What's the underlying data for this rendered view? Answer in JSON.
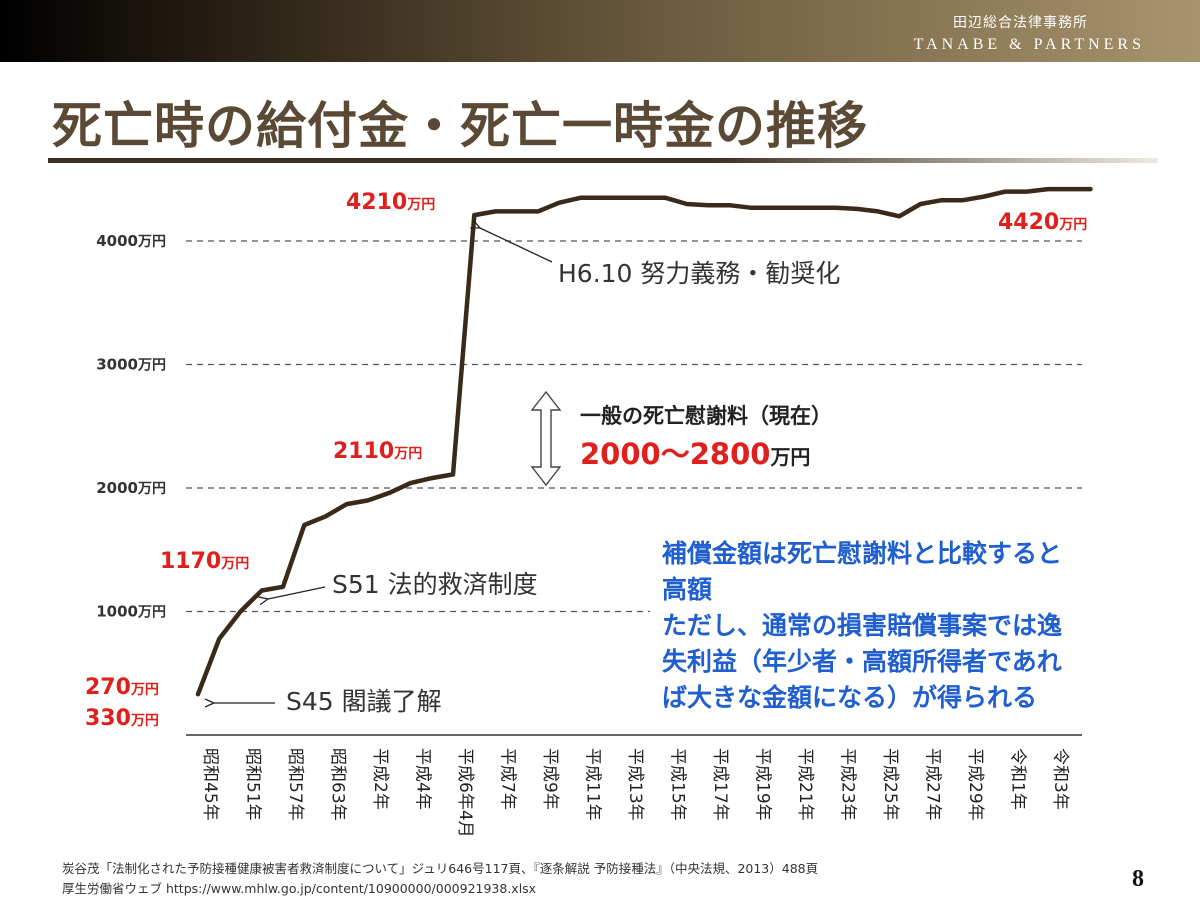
{
  "header": {
    "firm_jp": "田辺総合法律事務所",
    "firm_en": "TANABE & PARTNERS"
  },
  "title": "死亡時の給付金・死亡一時金の推移",
  "colors": {
    "line": "#3a2a1a",
    "red": "#e0201c",
    "blue": "#1f5fd0",
    "title": "#5a4a35"
  },
  "chart_data": {
    "type": "line",
    "unit": "万円",
    "categories": [
      "昭和45年",
      "昭和51年",
      "昭和57年",
      "昭和63年",
      "平成2年",
      "平成4年",
      "平成6年4月",
      "平成7年",
      "平成9年",
      "平成11年",
      "平成13年",
      "平成15年",
      "平成17年",
      "平成19年",
      "平成21年",
      "平成23年",
      "平成25年",
      "平成27年",
      "平成29年",
      "令和1年",
      "令和3年"
    ],
    "points": [
      {
        "x": 0.0,
        "y": 330
      },
      {
        "x": 0.5,
        "y": 780
      },
      {
        "x": 1.0,
        "y": 1000
      },
      {
        "x": 1.5,
        "y": 1170
      },
      {
        "x": 2.0,
        "y": 1200
      },
      {
        "x": 2.5,
        "y": 1700
      },
      {
        "x": 3.0,
        "y": 1770
      },
      {
        "x": 3.5,
        "y": 1870
      },
      {
        "x": 4.0,
        "y": 1900
      },
      {
        "x": 4.5,
        "y": 1960
      },
      {
        "x": 5.0,
        "y": 2040
      },
      {
        "x": 5.5,
        "y": 2080
      },
      {
        "x": 6.0,
        "y": 2110
      },
      {
        "x": 6.5,
        "y": 4210
      },
      {
        "x": 7.0,
        "y": 4240
      },
      {
        "x": 8.0,
        "y": 4240
      },
      {
        "x": 8.5,
        "y": 4310
      },
      {
        "x": 9.0,
        "y": 4350
      },
      {
        "x": 10.0,
        "y": 4350
      },
      {
        "x": 11.0,
        "y": 4350
      },
      {
        "x": 11.5,
        "y": 4300
      },
      {
        "x": 12.0,
        "y": 4290
      },
      {
        "x": 12.5,
        "y": 4290
      },
      {
        "x": 13.0,
        "y": 4270
      },
      {
        "x": 14.0,
        "y": 4270
      },
      {
        "x": 15.0,
        "y": 4270
      },
      {
        "x": 15.5,
        "y": 4260
      },
      {
        "x": 16.0,
        "y": 4240
      },
      {
        "x": 16.5,
        "y": 4200
      },
      {
        "x": 17.0,
        "y": 4300
      },
      {
        "x": 17.5,
        "y": 4330
      },
      {
        "x": 18.0,
        "y": 4330
      },
      {
        "x": 18.5,
        "y": 4360
      },
      {
        "x": 19.0,
        "y": 4400
      },
      {
        "x": 19.5,
        "y": 4400
      },
      {
        "x": 20.0,
        "y": 4420
      },
      {
        "x": 21.0,
        "y": 4420
      }
    ],
    "ylim": [
      0,
      4700
    ],
    "grid_values": [
      1000,
      2000,
      3000,
      4000
    ],
    "y_tick_labels": [
      {
        "value": 1000,
        "num": "1000",
        "unit": "万円"
      },
      {
        "value": 2000,
        "num": "2000",
        "unit": "万円"
      },
      {
        "value": 3000,
        "num": "3000",
        "unit": "万円"
      },
      {
        "value": 4000,
        "num": "4000",
        "unit": "万円"
      }
    ],
    "value_labels": [
      {
        "num": "270",
        "unit": "万円",
        "color": "red"
      },
      {
        "num": "330",
        "unit": "万円",
        "color": "red"
      },
      {
        "num": "1170",
        "unit": "万円",
        "color": "red"
      },
      {
        "num": "2110",
        "unit": "万円",
        "color": "red"
      },
      {
        "num": "4210",
        "unit": "万円",
        "color": "red"
      },
      {
        "num": "4420",
        "unit": "万円",
        "color": "red"
      }
    ],
    "annotations": [
      {
        "text": "S45 閣議了解"
      },
      {
        "text": "S51 法的救済制度"
      },
      {
        "text": "H6.10 努力義務・勧奨化"
      }
    ],
    "range_annotation": {
      "label": "一般の死亡慰謝料（現在）",
      "value_num": "2000～2800",
      "value_unit": "万円"
    }
  },
  "note": {
    "lines": [
      "補償金額は死亡慰謝料と比較すると",
      "高額",
      "ただし、通常の損害賠償事案では逸",
      "失利益（年少者・高額所得者であれ",
      "ば大きな金額になる）が得られる"
    ]
  },
  "footer": {
    "line1": "炭谷茂「法制化された予防接種健康被害者救済制度について」ジュリ646号117頁、『逐条解説 予防接種法』（中央法規、2013）488頁",
    "line2": "厚生労働省ウェブ https://www.mhlw.go.jp/content/10900000/000921938.xlsx",
    "page": "8"
  }
}
